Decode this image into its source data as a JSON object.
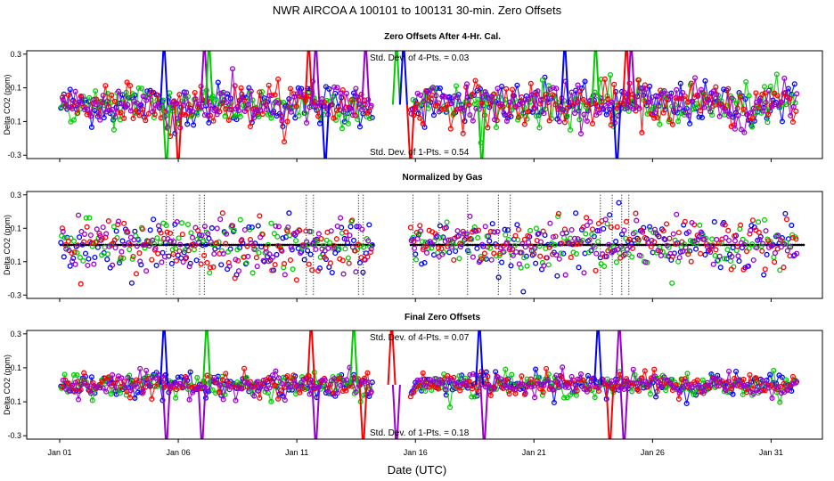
{
  "title": "NWR   AIRCOA A   100101 to 100131   30-min. Zero Offsets",
  "xlabel": "Date (UTC)",
  "colors": {
    "blue": "#0000ff",
    "green": "#00cc00",
    "red": "#ff0000",
    "purple": "#9900cc",
    "black": "#000000"
  },
  "chart_data": [
    {
      "type": "scatter",
      "title": "Zero Offsets After 4-Hr. Cal.",
      "ylabel": "Delta CO2 (ppm)",
      "ylim": [
        -0.32,
        0.32
      ],
      "xlim": [
        0,
        31.6
      ],
      "xtick_values": [
        0,
        5,
        10,
        15,
        20,
        25,
        30
      ],
      "xtick_labels": [
        "Jan 01",
        "Jan 06",
        "Jan 11",
        "Jan 16",
        "Jan 21",
        "Jan 26",
        "Jan 31"
      ],
      "ytick_values": [
        -0.3,
        -0.1,
        0.1,
        0.3
      ],
      "ytick_labels": [
        "-0.3",
        "-0.1",
        "0.1",
        "0.3"
      ],
      "annotations": [
        "Std. Dev. of 4-Pts. = 0.03",
        "Std. Dev. of 1-Pts. = 0.54"
      ],
      "series": [
        "blue",
        "green",
        "red",
        "purple"
      ],
      "point_sd": 0.065,
      "connect_lines": true,
      "gaps": [
        [
          13.2,
          14.8
        ]
      ],
      "spikes": [
        {
          "x": 4.4,
          "series": "blue",
          "dir": 1
        },
        {
          "x": 4.5,
          "series": "green",
          "dir": -1
        },
        {
          "x": 5.0,
          "series": "red",
          "dir": -1
        },
        {
          "x": 6.1,
          "series": "purple",
          "dir": 1
        },
        {
          "x": 6.3,
          "series": "green",
          "dir": 1
        },
        {
          "x": 10.5,
          "series": "red",
          "dir": 1
        },
        {
          "x": 10.8,
          "series": "purple",
          "dir": 1
        },
        {
          "x": 11.2,
          "series": "blue",
          "dir": -1
        },
        {
          "x": 12.9,
          "series": "purple",
          "dir": 1
        },
        {
          "x": 14.2,
          "series": "green",
          "dir": 1
        },
        {
          "x": 14.5,
          "series": "blue",
          "dir": 1
        },
        {
          "x": 14.8,
          "series": "red",
          "dir": -1
        },
        {
          "x": 17.8,
          "series": "green",
          "dir": -1
        },
        {
          "x": 21.3,
          "series": "blue",
          "dir": 1
        },
        {
          "x": 22.6,
          "series": "green",
          "dir": 1
        },
        {
          "x": 23.5,
          "series": "blue",
          "dir": -1
        },
        {
          "x": 23.9,
          "series": "red",
          "dir": 1
        },
        {
          "x": 24.1,
          "series": "purple",
          "dir": 1
        }
      ]
    },
    {
      "type": "scatter",
      "title": "Normalized by Gas",
      "ylabel": "Delta CO2 (ppm)",
      "ylim": [
        -0.32,
        0.32
      ],
      "xlim": [
        0,
        31.6
      ],
      "xtick_values": [
        0,
        5,
        10,
        15,
        20,
        25,
        30
      ],
      "xtick_labels": [
        "Jan 01",
        "Jan 06",
        "Jan 11",
        "Jan 16",
        "Jan 21",
        "Jan 26",
        "Jan 31"
      ],
      "ytick_values": [
        -0.3,
        -0.1,
        0.1,
        0.3
      ],
      "ytick_labels": [
        "-0.3",
        "-0.1",
        "0.1",
        "0.3"
      ],
      "annotations": [],
      "series": [
        "blue",
        "green",
        "red",
        "purple"
      ],
      "point_sd": 0.08,
      "connect_lines": false,
      "zero_line": true,
      "gaps": [
        [
          13.2,
          14.8
        ]
      ],
      "dotted_spikes": [
        4.5,
        4.8,
        5.9,
        6.1,
        10.4,
        10.7,
        12.6,
        12.8,
        14.9,
        16.0,
        17.2,
        18.5,
        19.0,
        22.8,
        23.3,
        23.7,
        24.0
      ]
    },
    {
      "type": "scatter",
      "title": "Final Zero Offsets",
      "ylabel": "Delta CO2 (ppm)",
      "ylim": [
        -0.32,
        0.32
      ],
      "xlim": [
        0,
        31.6
      ],
      "xtick_values": [
        0,
        5,
        10,
        15,
        20,
        25,
        30
      ],
      "xtick_labels": [
        "Jan 01",
        "Jan 06",
        "Jan 11",
        "Jan 16",
        "Jan 21",
        "Jan 26",
        "Jan 31"
      ],
      "ytick_values": [
        -0.3,
        -0.1,
        0.1,
        0.3
      ],
      "ytick_labels": [
        "-0.3",
        "-0.1",
        "0.1",
        "0.3"
      ],
      "annotations": [
        "Std. Dev. of 4-Pts. = 0.07",
        "Std. Dev. of 1-Pts. = 0.18"
      ],
      "series": [
        "blue",
        "green",
        "red",
        "purple"
      ],
      "point_sd": 0.035,
      "connect_lines": true,
      "gaps": [
        [
          13.2,
          14.8
        ]
      ],
      "spikes": [
        {
          "x": 4.4,
          "series": "blue",
          "dir": 1
        },
        {
          "x": 4.5,
          "series": "purple",
          "dir": -1
        },
        {
          "x": 6.0,
          "series": "purple",
          "dir": -1
        },
        {
          "x": 6.2,
          "series": "green",
          "dir": 1
        },
        {
          "x": 10.6,
          "series": "red",
          "dir": 1
        },
        {
          "x": 10.8,
          "series": "purple",
          "dir": -1
        },
        {
          "x": 12.4,
          "series": "green",
          "dir": 1
        },
        {
          "x": 12.8,
          "series": "red",
          "dir": -1
        },
        {
          "x": 14.0,
          "series": "red",
          "dir": 1
        },
        {
          "x": 14.2,
          "series": "purple",
          "dir": -1
        },
        {
          "x": 17.7,
          "series": "blue",
          "dir": 1
        },
        {
          "x": 17.9,
          "series": "purple",
          "dir": -1
        },
        {
          "x": 22.7,
          "series": "blue",
          "dir": 1
        },
        {
          "x": 23.2,
          "series": "red",
          "dir": -1
        },
        {
          "x": 23.6,
          "series": "purple",
          "dir": 1
        },
        {
          "x": 23.8,
          "series": "purple",
          "dir": -1
        }
      ]
    }
  ]
}
